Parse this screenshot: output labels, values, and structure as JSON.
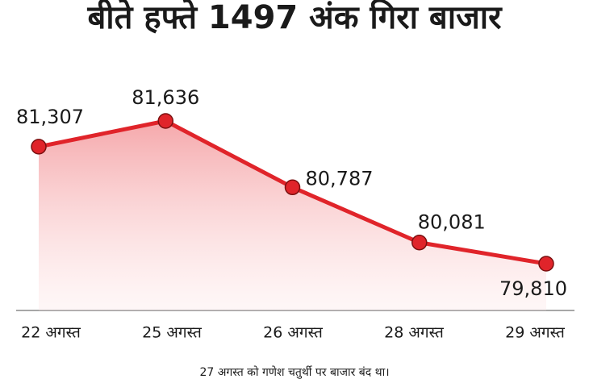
{
  "chart_data": {
    "type": "line",
    "title": "बीते हफ्ते 1497 अंक गिरा बाजार",
    "categories": [
      "22 अगस्त",
      "25 अगस्त",
      "26 अगस्त",
      "28 अगस्त",
      "29 अगस्त"
    ],
    "values": [
      81307,
      81636,
      80787,
      80081,
      79810
    ],
    "value_labels": [
      "81,307",
      "81,636",
      "80,787",
      "80,081",
      "79,810"
    ],
    "color": "#e0242a",
    "note": "27 अगस्त को गणेश चतुर्थी पर बाजार बंद था।"
  }
}
